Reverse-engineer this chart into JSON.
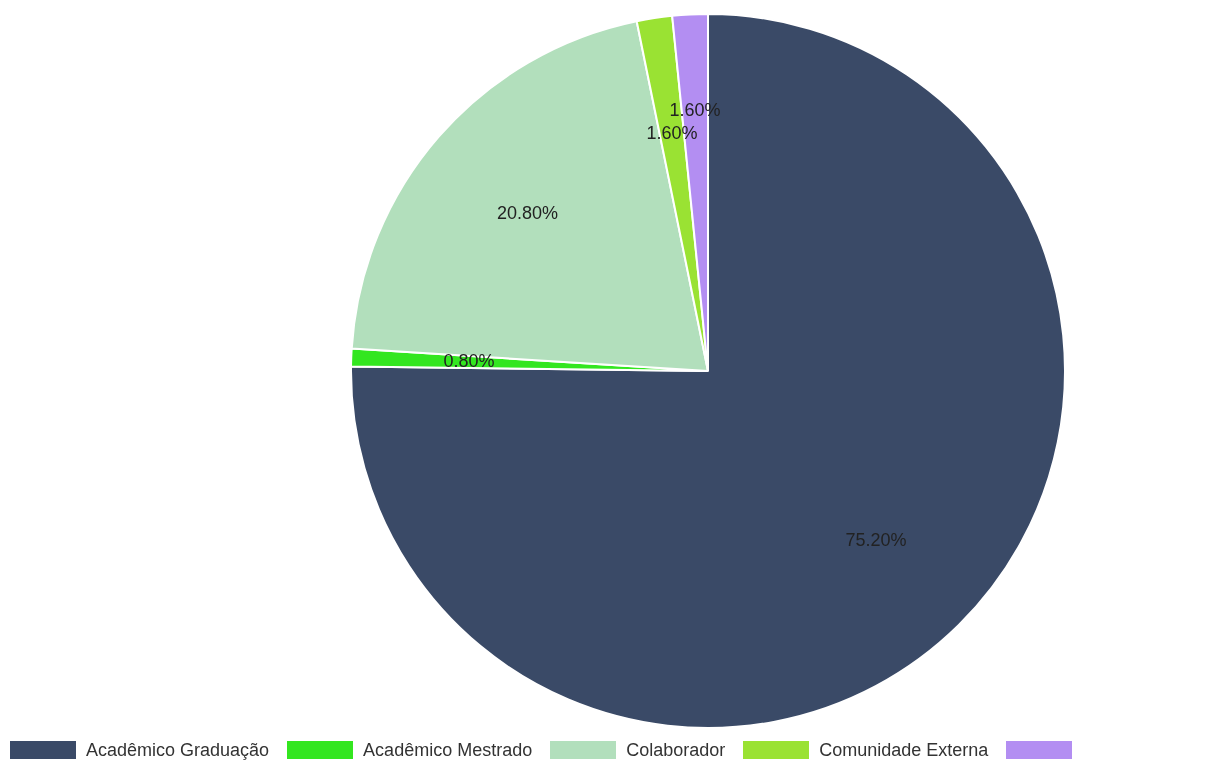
{
  "chart_data": {
    "type": "pie",
    "categories": [
      "Acadêmico Graduação",
      "Acadêmico Mestrado",
      "Colaborador",
      "Comunidade Externa",
      null
    ],
    "values": [
      75.2,
      0.8,
      20.8,
      1.6,
      1.6
    ],
    "colors": [
      "#3a4a67",
      "#33e620",
      "#b2dfbc",
      "#9ae233",
      "#b38ef2"
    ],
    "value_labels": [
      "75.20%",
      "0.80%",
      "20.80%",
      "1.60%",
      "1.60%"
    ],
    "legend": "bottom"
  }
}
